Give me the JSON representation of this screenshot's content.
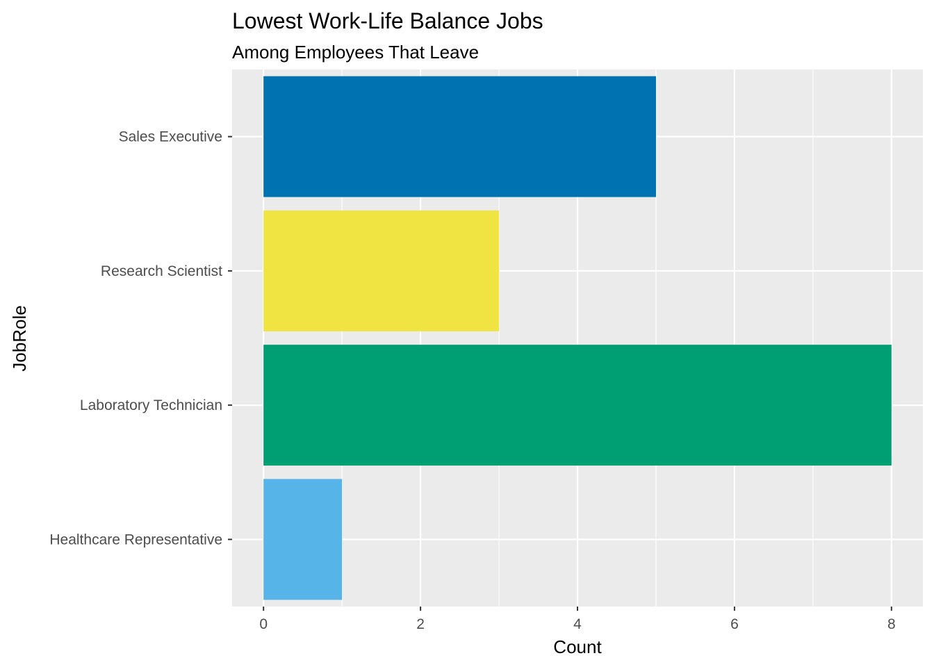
{
  "chart_data": {
    "type": "bar",
    "orientation": "horizontal",
    "title": "Lowest Work-Life Balance Jobs",
    "subtitle": "Among Employees That Leave",
    "xlabel": "Count",
    "ylabel": "JobRole",
    "categories": [
      "Sales Executive",
      "Research Scientist",
      "Laboratory Technician",
      "Healthcare Representative"
    ],
    "values": [
      5,
      3,
      8,
      1
    ],
    "colors": [
      "#0072B2",
      "#F0E442",
      "#009E73",
      "#56B4E9"
    ],
    "xlim": [
      -0.4,
      8.4
    ],
    "xticks": [
      0,
      2,
      4,
      6,
      8
    ],
    "grid": true,
    "legend": "none",
    "panel_background": "#EBEBEB",
    "grid_color": "#FFFFFF"
  }
}
